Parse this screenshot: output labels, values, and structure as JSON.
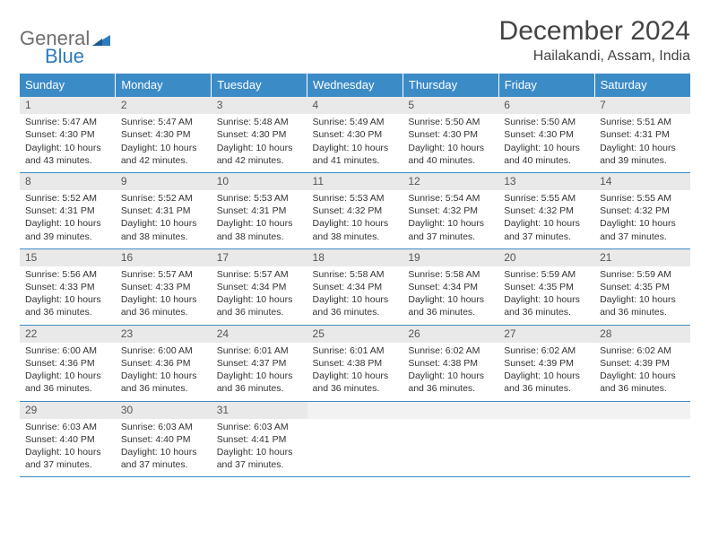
{
  "brand": {
    "part1": "General",
    "part2": "Blue"
  },
  "title": "December 2024",
  "location": "Hailakandi, Assam, India",
  "colors": {
    "header_bg": "#3b8bc7",
    "header_text": "#ffffff",
    "daynum_bg": "#e9e9e9",
    "border": "#3b8bc7",
    "logo_gray": "#6e6e6e",
    "logo_blue": "#2f7bbf"
  },
  "weekdays": [
    "Sunday",
    "Monday",
    "Tuesday",
    "Wednesday",
    "Thursday",
    "Friday",
    "Saturday"
  ],
  "weeks": [
    [
      {
        "n": "1",
        "sr": "Sunrise: 5:47 AM",
        "ss": "Sunset: 4:30 PM",
        "dl": "Daylight: 10 hours and 43 minutes."
      },
      {
        "n": "2",
        "sr": "Sunrise: 5:47 AM",
        "ss": "Sunset: 4:30 PM",
        "dl": "Daylight: 10 hours and 42 minutes."
      },
      {
        "n": "3",
        "sr": "Sunrise: 5:48 AM",
        "ss": "Sunset: 4:30 PM",
        "dl": "Daylight: 10 hours and 42 minutes."
      },
      {
        "n": "4",
        "sr": "Sunrise: 5:49 AM",
        "ss": "Sunset: 4:30 PM",
        "dl": "Daylight: 10 hours and 41 minutes."
      },
      {
        "n": "5",
        "sr": "Sunrise: 5:50 AM",
        "ss": "Sunset: 4:30 PM",
        "dl": "Daylight: 10 hours and 40 minutes."
      },
      {
        "n": "6",
        "sr": "Sunrise: 5:50 AM",
        "ss": "Sunset: 4:30 PM",
        "dl": "Daylight: 10 hours and 40 minutes."
      },
      {
        "n": "7",
        "sr": "Sunrise: 5:51 AM",
        "ss": "Sunset: 4:31 PM",
        "dl": "Daylight: 10 hours and 39 minutes."
      }
    ],
    [
      {
        "n": "8",
        "sr": "Sunrise: 5:52 AM",
        "ss": "Sunset: 4:31 PM",
        "dl": "Daylight: 10 hours and 39 minutes."
      },
      {
        "n": "9",
        "sr": "Sunrise: 5:52 AM",
        "ss": "Sunset: 4:31 PM",
        "dl": "Daylight: 10 hours and 38 minutes."
      },
      {
        "n": "10",
        "sr": "Sunrise: 5:53 AM",
        "ss": "Sunset: 4:31 PM",
        "dl": "Daylight: 10 hours and 38 minutes."
      },
      {
        "n": "11",
        "sr": "Sunrise: 5:53 AM",
        "ss": "Sunset: 4:32 PM",
        "dl": "Daylight: 10 hours and 38 minutes."
      },
      {
        "n": "12",
        "sr": "Sunrise: 5:54 AM",
        "ss": "Sunset: 4:32 PM",
        "dl": "Daylight: 10 hours and 37 minutes."
      },
      {
        "n": "13",
        "sr": "Sunrise: 5:55 AM",
        "ss": "Sunset: 4:32 PM",
        "dl": "Daylight: 10 hours and 37 minutes."
      },
      {
        "n": "14",
        "sr": "Sunrise: 5:55 AM",
        "ss": "Sunset: 4:32 PM",
        "dl": "Daylight: 10 hours and 37 minutes."
      }
    ],
    [
      {
        "n": "15",
        "sr": "Sunrise: 5:56 AM",
        "ss": "Sunset: 4:33 PM",
        "dl": "Daylight: 10 hours and 36 minutes."
      },
      {
        "n": "16",
        "sr": "Sunrise: 5:57 AM",
        "ss": "Sunset: 4:33 PM",
        "dl": "Daylight: 10 hours and 36 minutes."
      },
      {
        "n": "17",
        "sr": "Sunrise: 5:57 AM",
        "ss": "Sunset: 4:34 PM",
        "dl": "Daylight: 10 hours and 36 minutes."
      },
      {
        "n": "18",
        "sr": "Sunrise: 5:58 AM",
        "ss": "Sunset: 4:34 PM",
        "dl": "Daylight: 10 hours and 36 minutes."
      },
      {
        "n": "19",
        "sr": "Sunrise: 5:58 AM",
        "ss": "Sunset: 4:34 PM",
        "dl": "Daylight: 10 hours and 36 minutes."
      },
      {
        "n": "20",
        "sr": "Sunrise: 5:59 AM",
        "ss": "Sunset: 4:35 PM",
        "dl": "Daylight: 10 hours and 36 minutes."
      },
      {
        "n": "21",
        "sr": "Sunrise: 5:59 AM",
        "ss": "Sunset: 4:35 PM",
        "dl": "Daylight: 10 hours and 36 minutes."
      }
    ],
    [
      {
        "n": "22",
        "sr": "Sunrise: 6:00 AM",
        "ss": "Sunset: 4:36 PM",
        "dl": "Daylight: 10 hours and 36 minutes."
      },
      {
        "n": "23",
        "sr": "Sunrise: 6:00 AM",
        "ss": "Sunset: 4:36 PM",
        "dl": "Daylight: 10 hours and 36 minutes."
      },
      {
        "n": "24",
        "sr": "Sunrise: 6:01 AM",
        "ss": "Sunset: 4:37 PM",
        "dl": "Daylight: 10 hours and 36 minutes."
      },
      {
        "n": "25",
        "sr": "Sunrise: 6:01 AM",
        "ss": "Sunset: 4:38 PM",
        "dl": "Daylight: 10 hours and 36 minutes."
      },
      {
        "n": "26",
        "sr": "Sunrise: 6:02 AM",
        "ss": "Sunset: 4:38 PM",
        "dl": "Daylight: 10 hours and 36 minutes."
      },
      {
        "n": "27",
        "sr": "Sunrise: 6:02 AM",
        "ss": "Sunset: 4:39 PM",
        "dl": "Daylight: 10 hours and 36 minutes."
      },
      {
        "n": "28",
        "sr": "Sunrise: 6:02 AM",
        "ss": "Sunset: 4:39 PM",
        "dl": "Daylight: 10 hours and 36 minutes."
      }
    ],
    [
      {
        "n": "29",
        "sr": "Sunrise: 6:03 AM",
        "ss": "Sunset: 4:40 PM",
        "dl": "Daylight: 10 hours and 37 minutes."
      },
      {
        "n": "30",
        "sr": "Sunrise: 6:03 AM",
        "ss": "Sunset: 4:40 PM",
        "dl": "Daylight: 10 hours and 37 minutes."
      },
      {
        "n": "31",
        "sr": "Sunrise: 6:03 AM",
        "ss": "Sunset: 4:41 PM",
        "dl": "Daylight: 10 hours and 37 minutes."
      },
      {
        "empty": true
      },
      {
        "empty": true
      },
      {
        "empty": true
      },
      {
        "empty": true
      }
    ]
  ]
}
